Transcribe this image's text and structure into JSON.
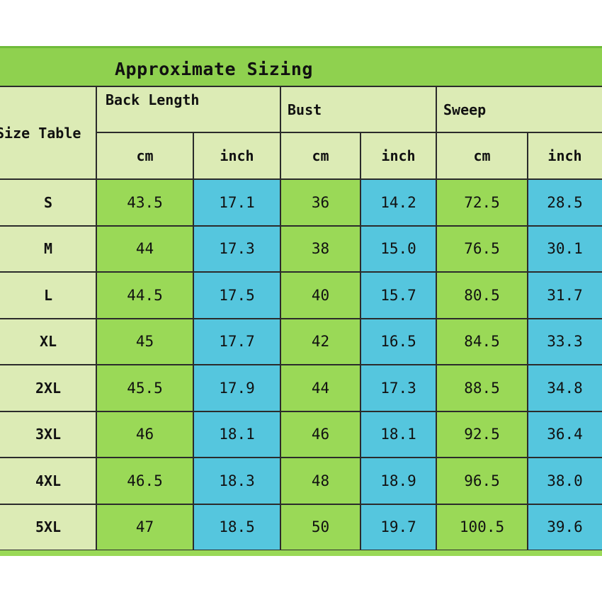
{
  "title": "Approximate Sizing",
  "corner_label": "Size Table",
  "groups": [
    "Back Length",
    "Bust",
    "Sweep"
  ],
  "units": [
    "cm",
    "inch",
    "cm",
    "inch",
    "cm",
    "inch"
  ],
  "rows": [
    {
      "size": "S",
      "values": [
        "43.5",
        "17.1",
        "36",
        "14.2",
        "72.5",
        "28.5"
      ]
    },
    {
      "size": "M",
      "values": [
        "44",
        "17.3",
        "38",
        "15.0",
        "76.5",
        "30.1"
      ]
    },
    {
      "size": "L",
      "values": [
        "44.5",
        "17.5",
        "40",
        "15.7",
        "80.5",
        "31.7"
      ]
    },
    {
      "size": "XL",
      "values": [
        "45",
        "17.7",
        "42",
        "16.5",
        "84.5",
        "33.3"
      ]
    },
    {
      "size": "2XL",
      "values": [
        "45.5",
        "17.9",
        "44",
        "17.3",
        "88.5",
        "34.8"
      ]
    },
    {
      "size": "3XL",
      "values": [
        "46",
        "18.1",
        "46",
        "18.1",
        "92.5",
        "36.4"
      ]
    },
    {
      "size": "4XL",
      "values": [
        "46.5",
        "18.3",
        "48",
        "18.9",
        "96.5",
        "38.0"
      ]
    },
    {
      "size": "5XL",
      "values": [
        "47",
        "18.5",
        "50",
        "19.7",
        "100.5",
        "39.6"
      ]
    }
  ],
  "colors": {
    "banner": "#8fd14f",
    "header": "#dcebb5",
    "cm_cell": "#9ad957",
    "inch_cell": "#55c6de"
  }
}
